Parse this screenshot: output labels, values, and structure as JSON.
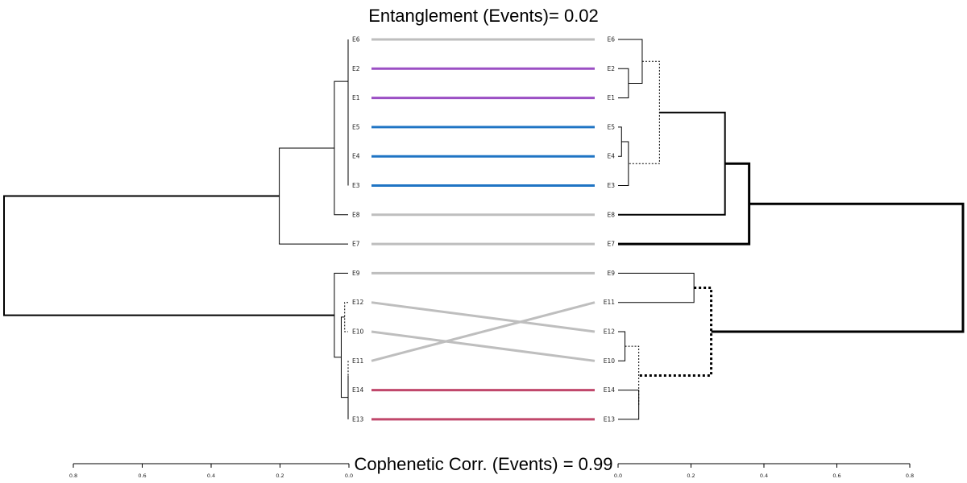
{
  "title": "Entanglement (Events)= 0.02",
  "footer": "Cophenetic Corr. (Events) = 0.99",
  "left_axis_ticks": [
    "0.8",
    "0.6",
    "0.4",
    "0.2",
    "0.0"
  ],
  "right_axis_ticks": [
    "0.0",
    "0.2",
    "0.4",
    "0.6",
    "0.8"
  ],
  "left_leaves": [
    "E6",
    "E2",
    "E1",
    "E5",
    "E4",
    "E3",
    "E8",
    "E7",
    "E9",
    "E12",
    "E10",
    "E11",
    "E14",
    "E13"
  ],
  "right_leaves": [
    "E6",
    "E2",
    "E1",
    "E5",
    "E4",
    "E3",
    "E8",
    "E7",
    "E9",
    "E11",
    "E12",
    "E10",
    "E14",
    "E13"
  ],
  "connecting_lines": [
    {
      "leaf": "E6",
      "color": "#bebebe"
    },
    {
      "leaf": "E2",
      "color": "#9b4fc4"
    },
    {
      "leaf": "E1",
      "color": "#9b4fc4"
    },
    {
      "leaf": "E5",
      "color": "#1f74c4"
    },
    {
      "leaf": "E4",
      "color": "#1f74c4"
    },
    {
      "leaf": "E3",
      "color": "#1f74c4"
    },
    {
      "leaf": "E8",
      "color": "#bebebe"
    },
    {
      "leaf": "E7",
      "color": "#bebebe"
    },
    {
      "leaf": "E9",
      "color": "#bebebe"
    },
    {
      "leaf": "E12",
      "color": "#bebebe"
    },
    {
      "leaf": "E10",
      "color": "#bebebe"
    },
    {
      "leaf": "E11",
      "color": "#bebebe"
    },
    {
      "leaf": "E14",
      "color": "#c0476b"
    },
    {
      "leaf": "E13",
      "color": "#c0476b"
    }
  ],
  "left_merges": [
    {
      "a": "E5",
      "b": "E4",
      "h": 0.0,
      "style": "solid",
      "w": 1
    },
    {
      "a": "E2",
      "b": "E1",
      "h": 0.0,
      "style": "solid",
      "w": 1
    },
    {
      "a": "E5+E4",
      "b": "E3",
      "h": 0.0,
      "style": "solid",
      "w": 1
    },
    {
      "a": "E11",
      "b": "E14",
      "h": 0.0,
      "style": "dotted",
      "w": 1
    },
    {
      "a": "E11+E14",
      "b": "E13",
      "h": 0.0,
      "style": "solid",
      "w": 1
    },
    {
      "a": "E2+E1",
      "b": "E5+E4+E3",
      "h": 0.0,
      "style": "solid",
      "w": 1
    },
    {
      "a": "E6",
      "b": "E2+E1+E5+E4+E3",
      "h": 0.0,
      "style": "solid",
      "w": 1
    },
    {
      "a": "E12",
      "b": "E10",
      "h": 0.01,
      "style": "dotted",
      "w": 1
    },
    {
      "a": "E12+E10",
      "b": "E11+E14+E13",
      "h": 0.02,
      "style": "solid",
      "w": 1
    },
    {
      "a": "E6+E2+E1+E5+E4+E3",
      "b": "E8",
      "h": 0.04,
      "style": "solid",
      "w": 1
    },
    {
      "a": "E9",
      "b": "E12+E10+E11+E14+E13",
      "h": 0.04,
      "style": "solid",
      "w": 1
    },
    {
      "a": "E6+E2+E1+E5+E4+E3+E8",
      "b": "E7",
      "h": 0.2,
      "style": "solid",
      "w": 1
    },
    {
      "a": "E6+E2+E1+E5+E4+E3+E8+E7",
      "b": "E9+E12+E10+E11+E14+E13",
      "h": 1.0,
      "style": "solid",
      "w": 2
    }
  ],
  "right_merges": [
    {
      "a": "E5",
      "b": "E4",
      "h": 0.01,
      "style": "solid",
      "w": 1
    },
    {
      "a": "E2",
      "b": "E1",
      "h": 0.03,
      "style": "solid",
      "w": 1
    },
    {
      "a": "E12",
      "b": "E10",
      "h": 0.02,
      "style": "solid",
      "w": 1
    },
    {
      "a": "E5+E4",
      "b": "E3",
      "h": 0.03,
      "style": "solid",
      "w": 1
    },
    {
      "a": "E14",
      "b": "E13",
      "h": 0.06,
      "style": "solid",
      "w": 1
    },
    {
      "a": "E6",
      "b": "E2+E1",
      "h": 0.07,
      "style": "solid",
      "w": 1
    },
    {
      "a": "E12+E10",
      "b": "E14+E13",
      "h": 0.06,
      "style": "dotted",
      "w": 1
    },
    {
      "a": "E6+E2+E1",
      "b": "E5+E4+E3",
      "h": 0.12,
      "style": "dotted",
      "w": 1
    },
    {
      "a": "E9",
      "b": "E11",
      "h": 0.22,
      "style": "solid",
      "w": 1
    },
    {
      "a": "E9+E11",
      "b": "E12+E10+E14+E13",
      "h": 0.27,
      "style": "dotted",
      "w": 3
    },
    {
      "a": "E6+E2+E1+E5+E4+E3",
      "b": "E8",
      "h": 0.31,
      "style": "solid",
      "w": 2
    },
    {
      "a": "E6+E2+E1+E5+E4+E3+E8",
      "b": "E7",
      "h": 0.38,
      "style": "solid",
      "w": 3
    },
    {
      "a": "E6+E2+E1+E5+E4+E3+E8+E7",
      "b": "E9+E11+E12+E10+E14+E13",
      "h": 1.0,
      "style": "solid",
      "w": 3
    }
  ]
}
